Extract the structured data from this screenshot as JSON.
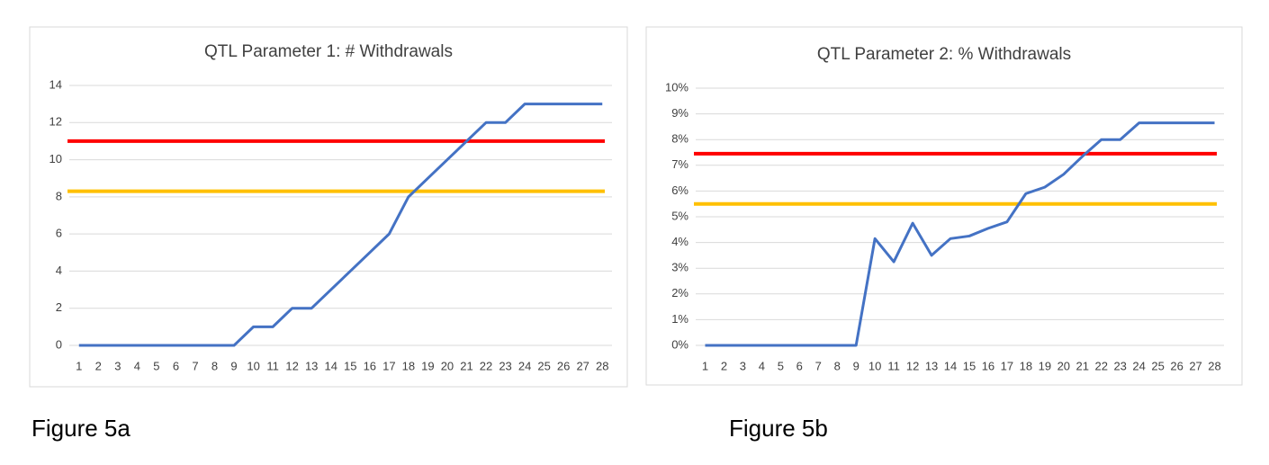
{
  "chart_data": [
    {
      "type": "line",
      "title": "QTL Parameter 1: # Withdrawals",
      "caption": "Figure 5a",
      "categories": [
        1,
        2,
        3,
        4,
        5,
        6,
        7,
        8,
        9,
        10,
        11,
        12,
        13,
        14,
        15,
        16,
        17,
        18,
        19,
        20,
        21,
        22,
        23,
        24,
        25,
        26,
        27,
        28
      ],
      "series": [
        {
          "color": "#4472c4",
          "values": [
            0,
            0,
            0,
            0,
            0,
            0,
            0,
            0,
            0,
            1,
            1,
            2,
            2,
            3,
            4,
            5,
            6,
            8,
            9,
            10,
            11,
            12,
            12,
            13,
            13,
            13,
            13,
            13
          ]
        }
      ],
      "hlines": [
        {
          "value": 11,
          "color": "#ff0000"
        },
        {
          "value": 8.3,
          "color": "#ffc000"
        }
      ],
      "ylim": [
        0,
        14
      ],
      "yticks": [
        0,
        2,
        4,
        6,
        8,
        10,
        12,
        14
      ],
      "grid": true
    },
    {
      "type": "line",
      "title": "QTL Parameter 2: % Withdrawals",
      "caption": "Figure 5b",
      "categories": [
        1,
        2,
        3,
        4,
        5,
        6,
        7,
        8,
        9,
        10,
        11,
        12,
        13,
        14,
        15,
        16,
        17,
        18,
        19,
        20,
        21,
        22,
        23,
        24,
        25,
        26,
        27,
        28
      ],
      "series": [
        {
          "color": "#4472c4",
          "values": [
            0,
            0,
            0,
            0,
            0,
            0,
            0,
            0,
            0,
            4.15,
            3.25,
            4.75,
            3.5,
            4.15,
            4.25,
            4.55,
            4.8,
            5.9,
            6.15,
            6.65,
            7.35,
            8,
            8,
            8.65,
            8.65,
            8.65,
            8.65,
            8.65
          ]
        }
      ],
      "hlines": [
        {
          "value": 7.45,
          "color": "#ff0000"
        },
        {
          "value": 5.5,
          "color": "#ffc000"
        }
      ],
      "ylim": [
        0,
        10
      ],
      "yticks": [
        {
          "value": 0,
          "label": "0%"
        },
        {
          "value": 1,
          "label": "1%"
        },
        {
          "value": 2,
          "label": "2%"
        },
        {
          "value": 3,
          "label": "3%"
        },
        {
          "value": 4,
          "label": "4%"
        },
        {
          "value": 5,
          "label": "5%"
        },
        {
          "value": 6,
          "label": "6%"
        },
        {
          "value": 7,
          "label": "7%"
        },
        {
          "value": 8,
          "label": "8%"
        },
        {
          "value": 9,
          "label": "9%"
        },
        {
          "value": 10,
          "label": "10%"
        }
      ],
      "grid": true
    }
  ]
}
